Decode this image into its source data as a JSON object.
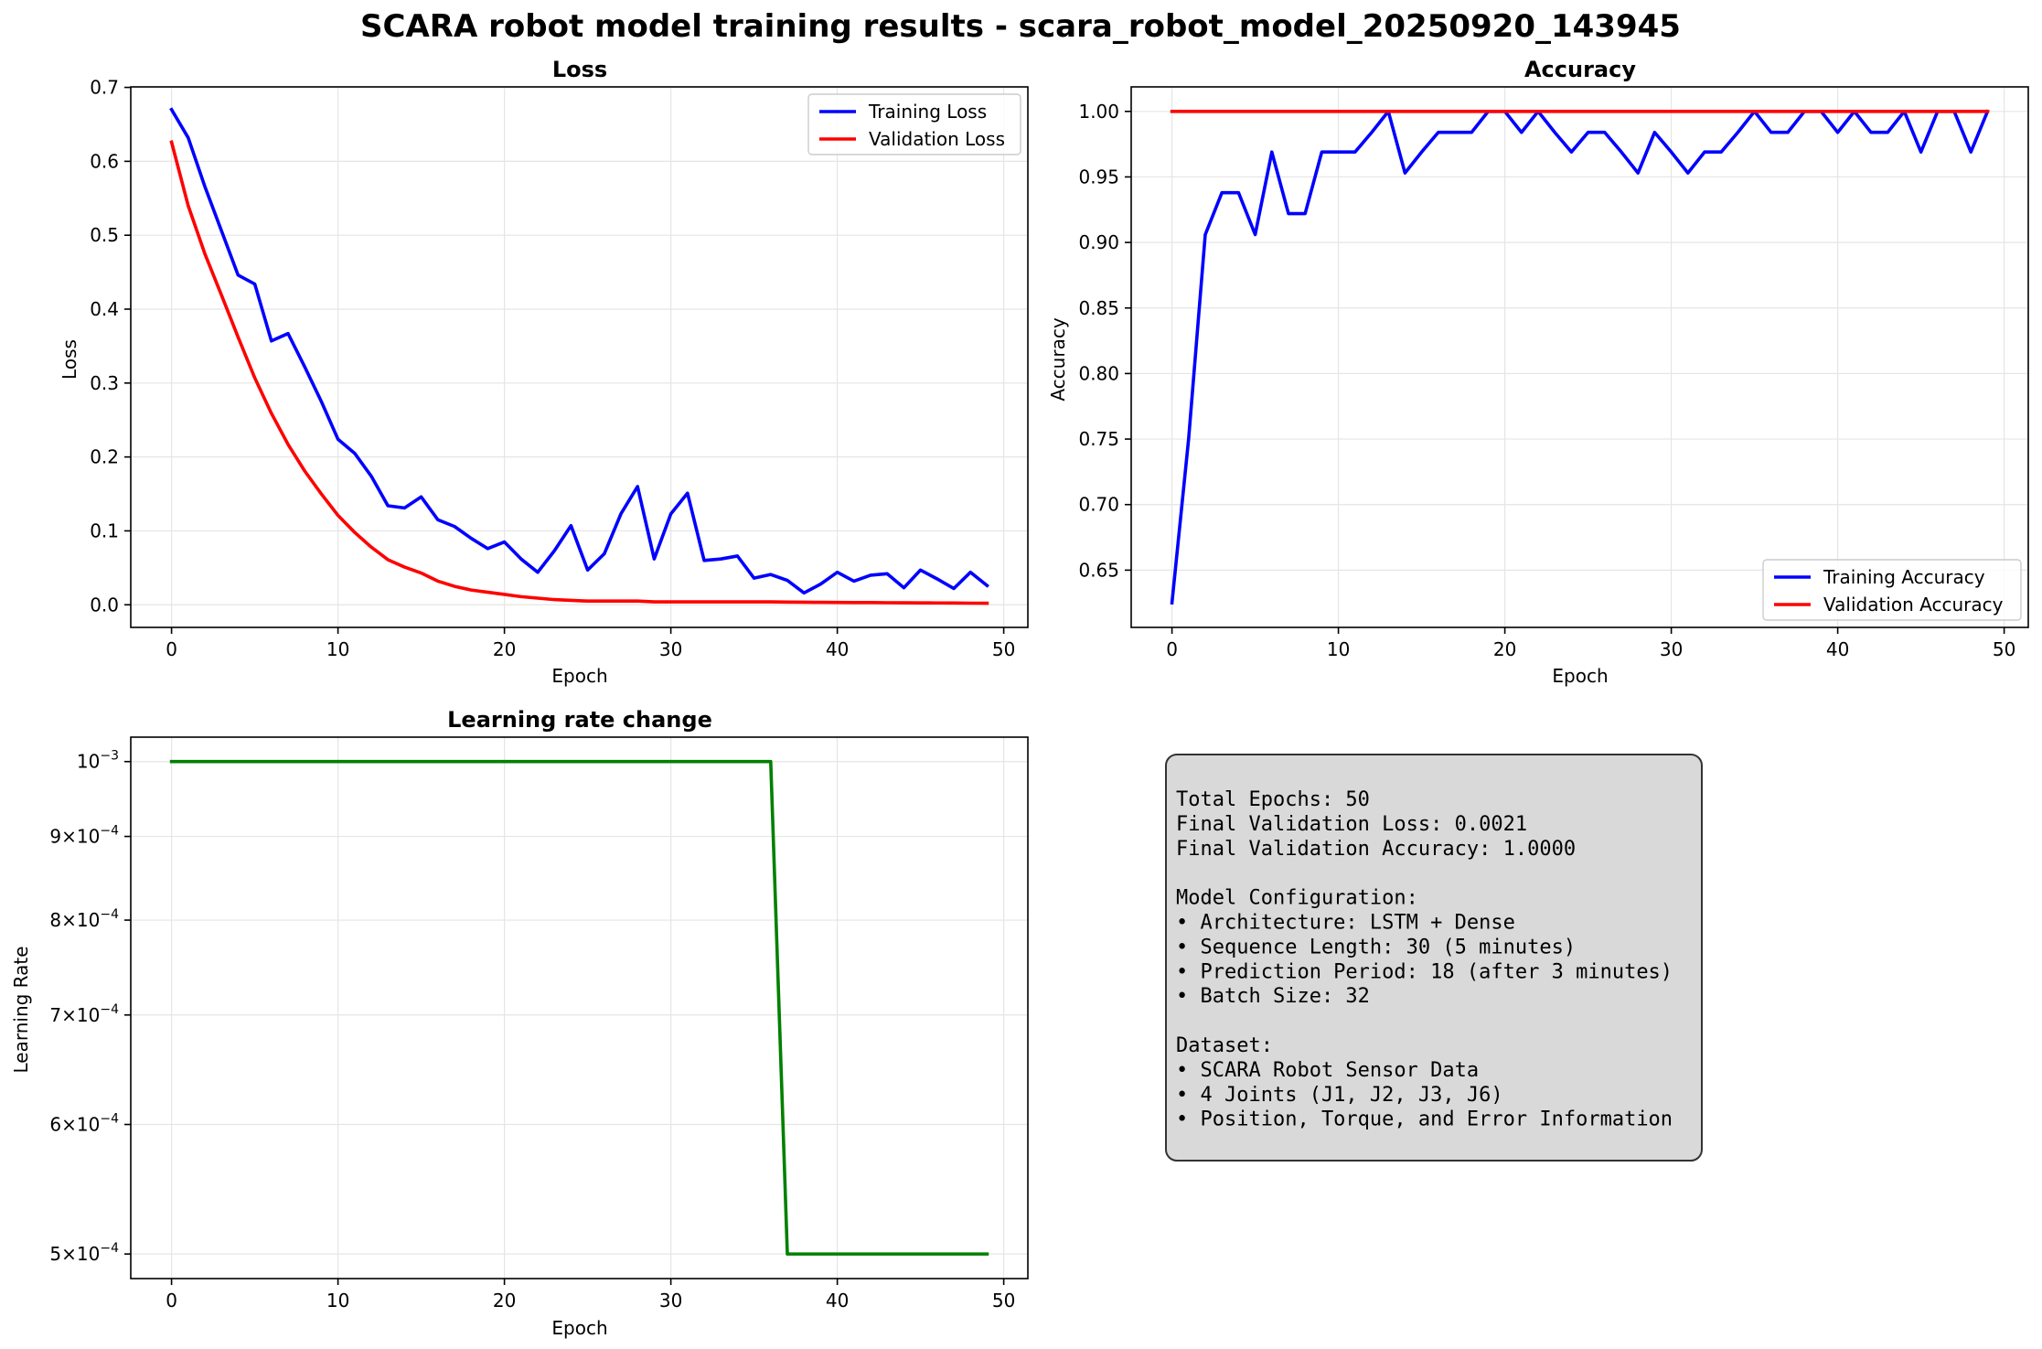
{
  "suptitle": "SCARA robot model training results - scara_robot_model_20250920_143945",
  "colors": {
    "blue": "#0000ff",
    "red": "#ff0000",
    "green": "#008000",
    "grid": "#e5e5e5",
    "summary_bg": "#d9d9d9"
  },
  "chart_data": [
    {
      "type": "line",
      "title": "Loss",
      "xlabel": "Epoch",
      "ylabel": "Loss",
      "xlim": [
        -2.45,
        51.45
      ],
      "ylim": [
        -0.0306,
        0.7007
      ],
      "xticks": [
        0,
        10,
        20,
        30,
        40,
        50
      ],
      "xtick_labels": [
        "0",
        "10",
        "20",
        "30",
        "40",
        "50"
      ],
      "yticks": [
        0.0,
        0.1,
        0.2,
        0.3,
        0.4,
        0.5,
        0.6,
        0.7
      ],
      "ytick_labels": [
        "0.0",
        "0.1",
        "0.2",
        "0.3",
        "0.4",
        "0.5",
        "0.6",
        "0.7"
      ],
      "grid": true,
      "legend_position": "upper right",
      "series": [
        {
          "name": "Training Loss",
          "color": "#0000ff",
          "x": [
            0,
            1,
            2,
            3,
            4,
            5,
            6,
            7,
            8,
            9,
            10,
            11,
            12,
            13,
            14,
            15,
            16,
            17,
            18,
            19,
            20,
            21,
            22,
            23,
            24,
            25,
            26,
            27,
            28,
            29,
            30,
            31,
            32,
            33,
            34,
            35,
            36,
            37,
            38,
            39,
            40,
            41,
            42,
            43,
            44,
            45,
            46,
            47,
            48,
            49
          ],
          "values": [
            0.67,
            0.632,
            0.566,
            0.506,
            0.446,
            0.434,
            0.357,
            0.367,
            0.322,
            0.275,
            0.224,
            0.205,
            0.174,
            0.134,
            0.131,
            0.146,
            0.115,
            0.106,
            0.09,
            0.076,
            0.085,
            0.062,
            0.044,
            0.073,
            0.107,
            0.047,
            0.069,
            0.123,
            0.16,
            0.062,
            0.123,
            0.151,
            0.06,
            0.062,
            0.066,
            0.036,
            0.041,
            0.033,
            0.016,
            0.028,
            0.044,
            0.032,
            0.04,
            0.042,
            0.023,
            0.047,
            0.035,
            0.022,
            0.044,
            0.026
          ]
        },
        {
          "name": "Validation Loss",
          "color": "#ff0000",
          "x": [
            0,
            1,
            2,
            3,
            4,
            5,
            6,
            7,
            8,
            9,
            10,
            11,
            12,
            13,
            14,
            15,
            16,
            17,
            18,
            19,
            20,
            21,
            22,
            23,
            24,
            25,
            26,
            27,
            28,
            29,
            30,
            31,
            32,
            33,
            34,
            35,
            36,
            37,
            38,
            39,
            40,
            41,
            42,
            43,
            44,
            45,
            46,
            47,
            48,
            49
          ],
          "values": [
            0.626,
            0.54,
            0.475,
            0.419,
            0.362,
            0.307,
            0.259,
            0.217,
            0.181,
            0.15,
            0.121,
            0.098,
            0.078,
            0.061,
            0.051,
            0.043,
            0.032,
            0.025,
            0.02,
            0.017,
            0.014,
            0.011,
            0.009,
            0.007,
            0.006,
            0.005,
            0.005,
            0.005,
            0.005,
            0.004,
            0.004,
            0.004,
            0.004,
            0.004,
            0.004,
            0.004,
            0.004,
            0.0037,
            0.0035,
            0.0033,
            0.0032,
            0.003,
            0.003,
            0.0028,
            0.0027,
            0.0026,
            0.0025,
            0.0024,
            0.0022,
            0.0021
          ]
        }
      ]
    },
    {
      "type": "line",
      "title": "Accuracy",
      "xlabel": "Epoch",
      "ylabel": "Accuracy",
      "xlim": [
        -2.45,
        51.45
      ],
      "ylim": [
        0.6063,
        1.0187
      ],
      "xticks": [
        0,
        10,
        20,
        30,
        40,
        50
      ],
      "xtick_labels": [
        "0",
        "10",
        "20",
        "30",
        "40",
        "50"
      ],
      "yticks": [
        0.65,
        0.7,
        0.75,
        0.8,
        0.85,
        0.9,
        0.95,
        1.0
      ],
      "ytick_labels": [
        "0.65",
        "0.70",
        "0.75",
        "0.80",
        "0.85",
        "0.90",
        "0.95",
        "1.00"
      ],
      "grid": true,
      "legend_position": "lower right",
      "series": [
        {
          "name": "Training Accuracy",
          "color": "#0000ff",
          "x": [
            0,
            1,
            2,
            3,
            4,
            5,
            6,
            7,
            8,
            9,
            10,
            11,
            12,
            13,
            14,
            15,
            16,
            17,
            18,
            19,
            20,
            21,
            22,
            23,
            24,
            25,
            26,
            27,
            28,
            29,
            30,
            31,
            32,
            33,
            34,
            35,
            36,
            37,
            38,
            39,
            40,
            41,
            42,
            43,
            44,
            45,
            46,
            47,
            48,
            49
          ],
          "values": [
            0.625,
            0.75,
            0.906,
            0.938,
            0.938,
            0.906,
            0.969,
            0.922,
            0.922,
            0.969,
            0.969,
            0.969,
            0.984,
            1.0,
            0.953,
            0.969,
            0.984,
            0.984,
            0.984,
            1.0,
            1.0,
            0.984,
            1.0,
            0.984,
            0.969,
            0.984,
            0.984,
            0.969,
            0.953,
            0.984,
            0.969,
            0.953,
            0.969,
            0.969,
            0.984,
            1.0,
            0.984,
            0.984,
            1.0,
            1.0,
            0.984,
            1.0,
            0.984,
            0.984,
            1.0,
            0.969,
            1.0,
            1.0,
            0.969,
            1.0
          ]
        },
        {
          "name": "Validation Accuracy",
          "color": "#ff0000",
          "x": [
            0,
            49
          ],
          "values": [
            1.0,
            1.0
          ]
        }
      ]
    },
    {
      "type": "line",
      "title": "Learning rate change",
      "xlabel": "Epoch",
      "ylabel": "Learning Rate",
      "yscale": "log",
      "xlim": [
        -2.45,
        51.45
      ],
      "ylim": [
        0.000483,
        0.001035
      ],
      "xticks": [
        0,
        10,
        20,
        30,
        40,
        50
      ],
      "xtick_labels": [
        "0",
        "10",
        "20",
        "30",
        "40",
        "50"
      ],
      "yticks": [
        0.001,
        0.0009,
        0.0008,
        0.0007,
        0.0006,
        0.0005
      ],
      "ytick_labels": [
        {
          "m": "10",
          "e": "−3"
        },
        {
          "m": "9×10",
          "e": "−4"
        },
        {
          "m": "8×10",
          "e": "−4"
        },
        {
          "m": "7×10",
          "e": "−4"
        },
        {
          "m": "6×10",
          "e": "−4"
        },
        {
          "m": "5×10",
          "e": "−4"
        }
      ],
      "grid": true,
      "series": [
        {
          "name": "",
          "color": "#008000",
          "x": [
            0,
            36,
            37,
            49
          ],
          "values": [
            0.001,
            0.001,
            0.0005,
            0.0005
          ]
        }
      ]
    }
  ],
  "summary": {
    "lines": [
      "Total Epochs: 50",
      "Final Validation Loss: 0.0021",
      "Final Validation Accuracy: 1.0000",
      "",
      "Model Configuration:",
      "• Architecture: LSTM + Dense",
      "• Sequence Length: 30 (5 minutes)",
      "• Prediction Period: 18 (after 3 minutes)",
      "• Batch Size: 32",
      "",
      "Dataset:",
      "• SCARA Robot Sensor Data",
      "• 4 Joints (J1, J2, J3, J6)",
      "• Position, Torque, and Error Information"
    ]
  }
}
